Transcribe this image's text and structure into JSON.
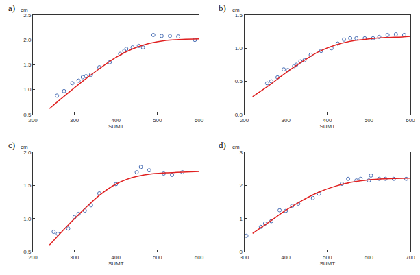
{
  "chart_data": [
    {
      "type": "scatter",
      "title": "a)",
      "xlabel": "SUMT",
      "ylabel": "cm",
      "grid": false,
      "xlim": [
        200,
        600
      ],
      "xticks": [
        200,
        300,
        400,
        500,
        600
      ],
      "ylim": [
        0.5,
        2.5
      ],
      "yticks": [
        0.5,
        {
          "value": 1,
          "label": "1.0"
        },
        1.5,
        {
          "value": 2,
          "label": "2.0"
        },
        2.5
      ],
      "series": [
        {
          "type": "scatter",
          "marker": "open circle",
          "color": "#4a6fb5",
          "x": [
            258,
            275,
            295,
            310,
            320,
            328,
            340,
            360,
            385,
            410,
            420,
            425,
            440,
            455,
            465,
            490,
            510,
            530,
            550,
            590
          ],
          "values": [
            0.88,
            0.97,
            1.13,
            1.18,
            1.25,
            1.27,
            1.3,
            1.45,
            1.55,
            1.72,
            1.78,
            1.82,
            1.85,
            1.88,
            1.85,
            2.1,
            2.08,
            2.08,
            2.07,
            2.0
          ]
        },
        {
          "type": "line",
          "line_style": "solid",
          "color": "#e02020",
          "x": [
            240,
            280,
            320,
            360,
            400,
            440,
            480,
            520,
            560,
            600
          ],
          "values": [
            0.62,
            0.9,
            1.17,
            1.42,
            1.65,
            1.82,
            1.93,
            1.99,
            2.01,
            2.02
          ]
        }
      ]
    },
    {
      "type": "scatter",
      "title": "b)",
      "xlabel": "SUMT",
      "ylabel": "cm",
      "grid": false,
      "xlim": [
        200,
        600
      ],
      "xticks": [
        200,
        300,
        400,
        500,
        600
      ],
      "ylim": [
        0,
        1.5
      ],
      "yticks": [
        {
          "value": 0,
          "label": "0.0"
        },
        0.5,
        {
          "value": 1,
          "label": "1.0"
        },
        1.5
      ],
      "series": [
        {
          "type": "scatter",
          "marker": "open circle",
          "color": "#4a6fb5",
          "x": [
            255,
            265,
            280,
            295,
            305,
            320,
            325,
            335,
            345,
            360,
            385,
            410,
            425,
            440,
            455,
            470,
            490,
            510,
            525,
            545,
            565,
            585
          ],
          "values": [
            0.47,
            0.5,
            0.56,
            0.68,
            0.67,
            0.73,
            0.75,
            0.8,
            0.82,
            0.9,
            0.96,
            1.0,
            1.07,
            1.13,
            1.15,
            1.15,
            1.15,
            1.15,
            1.17,
            1.2,
            1.21,
            1.2
          ]
        },
        {
          "type": "line",
          "line_style": "solid",
          "color": "#e02020",
          "x": [
            220,
            260,
            300,
            340,
            380,
            420,
            460,
            500,
            540,
            580,
            600
          ],
          "values": [
            0.27,
            0.44,
            0.63,
            0.8,
            0.95,
            1.05,
            1.11,
            1.14,
            1.16,
            1.17,
            1.18
          ]
        }
      ]
    },
    {
      "type": "scatter",
      "title": "c)",
      "xlabel": "SUMT",
      "ylabel": "cm",
      "grid": false,
      "xlim": [
        200,
        600
      ],
      "xticks": [
        200,
        300,
        400,
        500,
        600
      ],
      "ylim": [
        0.5,
        2.0
      ],
      "yticks": [
        0.5,
        {
          "value": 1,
          "label": "1.0"
        },
        1.5,
        {
          "value": 2,
          "label": "2.0"
        }
      ],
      "series": [
        {
          "type": "scatter",
          "marker": "open circle",
          "color": "#4a6fb5",
          "x": [
            250,
            260,
            285,
            300,
            310,
            325,
            340,
            360,
            400,
            450,
            460,
            480,
            515,
            535,
            560
          ],
          "values": [
            0.8,
            0.77,
            0.85,
            1.02,
            1.07,
            1.12,
            1.2,
            1.38,
            1.52,
            1.7,
            1.78,
            1.73,
            1.68,
            1.66,
            1.7
          ]
        },
        {
          "type": "line",
          "line_style": "solid",
          "color": "#e02020",
          "x": [
            240,
            280,
            320,
            360,
            400,
            440,
            480,
            520,
            560,
            600
          ],
          "values": [
            0.6,
            0.87,
            1.12,
            1.35,
            1.52,
            1.62,
            1.67,
            1.69,
            1.7,
            1.71
          ]
        }
      ]
    },
    {
      "type": "scatter",
      "title": "d)",
      "xlabel": "SUMT",
      "ylabel": "cm",
      "grid": false,
      "xlim": [
        300,
        700
      ],
      "xticks": [
        300,
        400,
        500,
        600,
        700
      ],
      "ylim": [
        0,
        3
      ],
      "yticks": [
        0,
        1,
        2,
        3
      ],
      "series": [
        {
          "type": "scatter",
          "marker": "open circle",
          "color": "#4a6fb5",
          "x": [
            305,
            340,
            350,
            365,
            385,
            400,
            415,
            430,
            465,
            480,
            535,
            550,
            570,
            580,
            600,
            605,
            625,
            640,
            660,
            690
          ],
          "values": [
            0.48,
            0.75,
            0.85,
            0.92,
            1.25,
            1.23,
            1.38,
            1.45,
            1.62,
            1.75,
            2.05,
            2.2,
            2.15,
            2.2,
            2.15,
            2.3,
            2.2,
            2.2,
            2.2,
            2.2
          ]
        },
        {
          "type": "line",
          "line_style": "solid",
          "color": "#e02020",
          "x": [
            320,
            360,
            400,
            440,
            480,
            520,
            560,
            600,
            640,
            700
          ],
          "values": [
            0.55,
            0.9,
            1.25,
            1.55,
            1.8,
            1.98,
            2.1,
            2.17,
            2.2,
            2.22
          ]
        }
      ]
    }
  ]
}
